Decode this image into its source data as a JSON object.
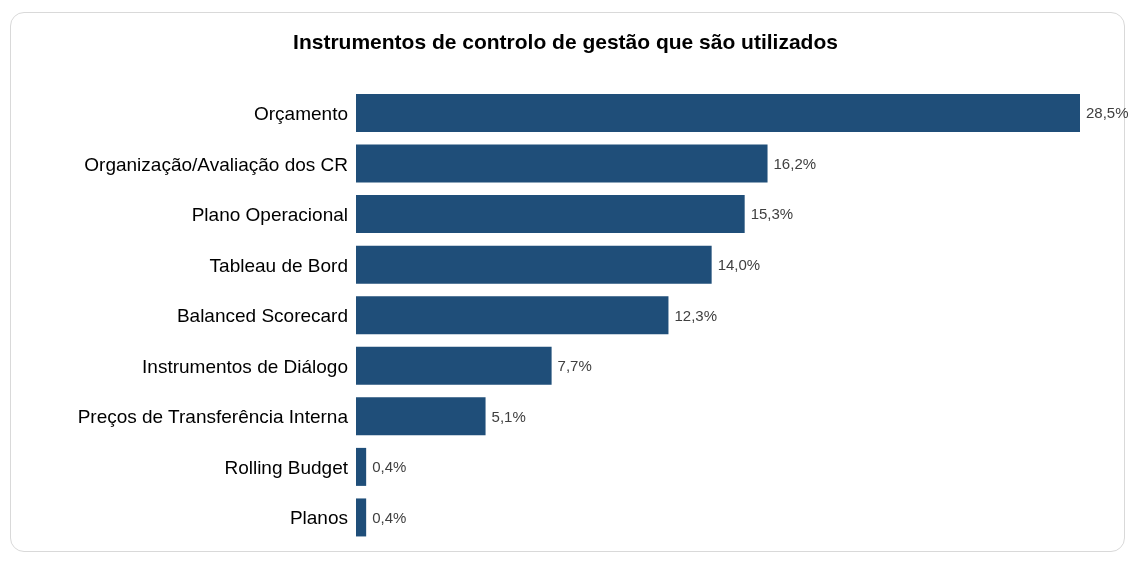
{
  "chart_data": {
    "type": "bar",
    "orientation": "horizontal",
    "title": "Instrumentos de controlo de gestão que são utilizados",
    "categories": [
      "Orçamento",
      "Organização/Avaliação dos CR",
      "Plano Operacional",
      "Tableau de Bord",
      "Balanced Scorecard",
      "Instrumentos de Diálogo",
      "Preços de Transferência Interna",
      "Rolling Budget",
      "Planos"
    ],
    "values": [
      28.5,
      16.2,
      15.3,
      14.0,
      12.3,
      7.7,
      5.1,
      0.4,
      0.4
    ],
    "value_labels": [
      "28,5%",
      "16,2%",
      "15,3%",
      "14,0%",
      "12,3%",
      "7,7%",
      "5,1%",
      "0,4%",
      "0,4%"
    ],
    "color": "#1f4e79",
    "grid": false,
    "legend": false
  }
}
